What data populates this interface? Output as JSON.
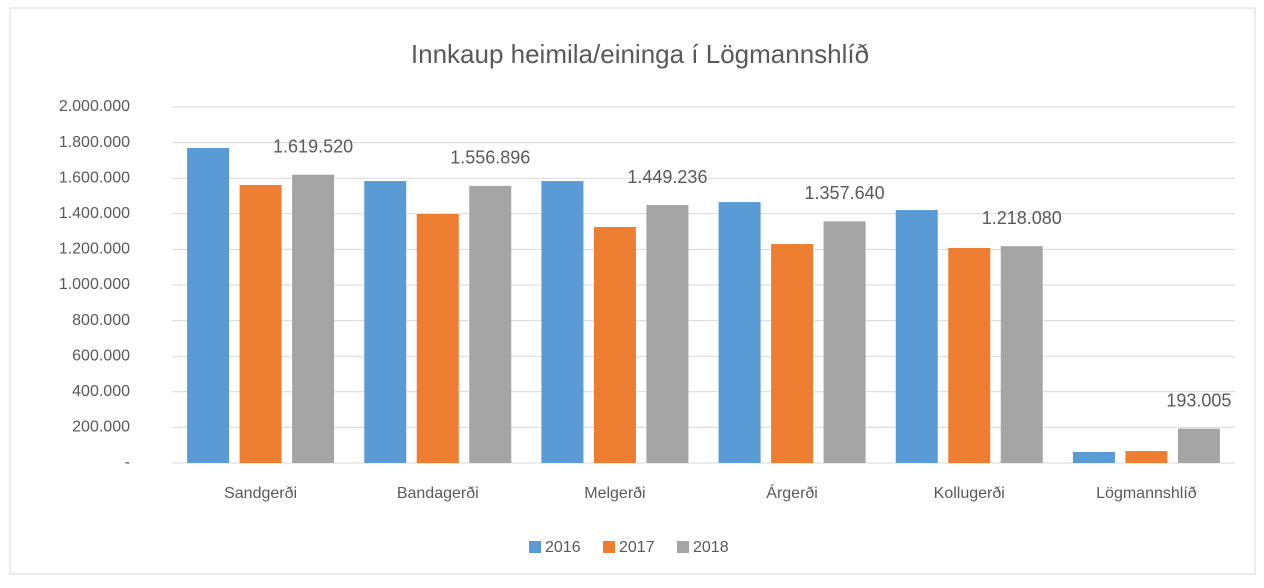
{
  "chart_data": {
    "type": "bar",
    "title": "Innkaup heimila/eininga í Lögmannshlíð",
    "categories": [
      "Sandgerði",
      "Bandagerði",
      "Melgerði",
      "Árgerði",
      "Kollugerði",
      "Lögmannshlíð"
    ],
    "series": [
      {
        "name": "2016",
        "color": "#5b9bd5",
        "values": [
          1770000,
          1584000,
          1584000,
          1466000,
          1421000,
          62000
        ]
      },
      {
        "name": "2017",
        "color": "#ed7d31",
        "values": [
          1562000,
          1399000,
          1326000,
          1230000,
          1208000,
          67000
        ]
      },
      {
        "name": "2018",
        "color": "#a5a5a5",
        "values": [
          1619520,
          1556896,
          1449236,
          1357640,
          1218080,
          193005
        ],
        "value_labels": [
          "1.619.520",
          "1.556.896",
          "1.449.236",
          "1.357.640",
          "1.218.080",
          "193.005"
        ]
      }
    ],
    "ylim": [
      0,
      2000000
    ],
    "yticks": [
      {
        "value": 0,
        "label": "-"
      },
      {
        "value": 200000,
        "label": "200.000"
      },
      {
        "value": 400000,
        "label": "400.000"
      },
      {
        "value": 600000,
        "label": "600.000"
      },
      {
        "value": 800000,
        "label": "800.000"
      },
      {
        "value": 1000000,
        "label": "1.000.000"
      },
      {
        "value": 1200000,
        "label": "1.200.000"
      },
      {
        "value": 1400000,
        "label": "1.400.000"
      },
      {
        "value": 1600000,
        "label": "1.600.000"
      },
      {
        "value": 1800000,
        "label": "1.800.000"
      },
      {
        "value": 2000000,
        "label": "2.000.000"
      }
    ],
    "grid": true,
    "legend": "bottom"
  }
}
